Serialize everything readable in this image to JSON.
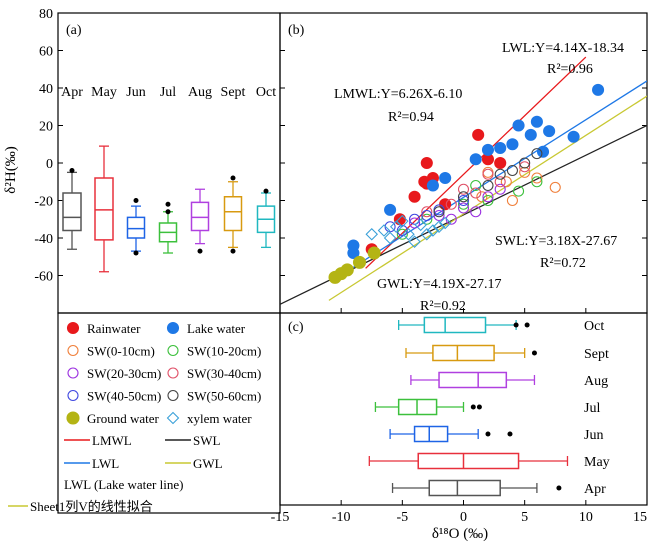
{
  "colors": {
    "rain": "#e8191c",
    "lake": "#1e78e6",
    "sw010": "#f0803c",
    "sw1020": "#3cc03c",
    "sw2030": "#9b30e0",
    "sw3040": "#e05068",
    "sw4050": "#4048e0",
    "sw5060": "#444444",
    "ground": "#b4b414",
    "xylem": "#3aa0d8",
    "lmwl": "#e8191c",
    "swl": "#222222",
    "lwl": "#1e78e6",
    "gwl": "#c8c832",
    "fit": "#c8c832",
    "box_apr": "#555555",
    "box_may": "#e8303c",
    "box_jun": "#1e64e6",
    "box_jul": "#3cc03c",
    "box_aug": "#b040e0",
    "box_sept": "#d89a10",
    "box_oct": "#20b8c0"
  },
  "axes": {
    "y_title": "δ²H(‰)",
    "x_title": "δ¹⁸O (‰)",
    "y_ticks": [
      "80",
      "60",
      "40",
      "20",
      "0",
      "-20",
      "-40",
      "-60"
    ],
    "x_ticks": [
      "-15",
      "-10",
      "-5",
      "0",
      "5",
      "10",
      "15"
    ]
  },
  "panels": {
    "a": "(a)",
    "b": "(b)",
    "c": "(c)"
  },
  "equations": {
    "lwl": "LWL:Y=4.14X-18.34",
    "lwl_r2": "R²=0.96",
    "lmwl": "LMWL:Y=6.26X-6.10",
    "lmwl_r2": "R²=0.94",
    "swl": "SWL:Y=3.18X-27.67",
    "swl_r2": "R²=0.72",
    "gwl": "GWL:Y=4.19X-27.17",
    "gwl_r2": "R²=0.92"
  },
  "legend": {
    "rain": "Rainwater",
    "lake": "Lake water",
    "sw010": "SW(0-10cm)",
    "sw1020": "SW(10-20cm)",
    "sw2030": "SW(20-30cm)",
    "sw3040": "SW(30-40cm)",
    "sw4050": "SW(40-50cm)",
    "sw5060": "SW(50-60cm)",
    "ground": "Ground water",
    "xylem": "xylem water",
    "lmwl": "LMWL",
    "swl": "SWL",
    "lwl": "LWL",
    "gwl": "GWL",
    "lwl_note": "LWL (Lake water line)",
    "fit": "Sheet1列V的线性拟合"
  },
  "chart_data": [
    {
      "panel": "(a)",
      "type": "box",
      "ylabel": "δ²H(‰)",
      "ylim": [
        -80,
        80
      ],
      "categories": [
        "Apr",
        "May",
        "Jun",
        "Jul",
        "Aug",
        "Sept",
        "Oct"
      ],
      "boxes": [
        {
          "name": "Apr",
          "whisker_low": -46,
          "q1": -36,
          "median": -29,
          "q3": -16,
          "whisker_high": -5,
          "outliers": [
            -4
          ]
        },
        {
          "name": "May",
          "whisker_low": -58,
          "q1": -41,
          "median": -25,
          "q3": -8,
          "whisker_high": 9,
          "outliers": []
        },
        {
          "name": "Jun",
          "whisker_low": -47,
          "q1": -40,
          "median": -35,
          "q3": -29,
          "whisker_high": -23,
          "outliers": [
            -20,
            -48
          ]
        },
        {
          "name": "Jul",
          "whisker_low": -48,
          "q1": -42,
          "median": -37,
          "q3": -32,
          "whisker_high": -26,
          "outliers": [
            -22,
            -26
          ]
        },
        {
          "name": "Aug",
          "whisker_low": -43,
          "q1": -36,
          "median": -29,
          "q3": -21,
          "whisker_high": -14,
          "outliers": [
            -47
          ]
        },
        {
          "name": "Sept",
          "whisker_low": -45,
          "q1": -36,
          "median": -26,
          "q3": -18,
          "whisker_high": -10,
          "outliers": [
            -8,
            -47
          ]
        },
        {
          "name": "Oct",
          "whisker_low": -45,
          "q1": -37,
          "median": -30,
          "q3": -23,
          "whisker_high": -16,
          "outliers": [
            -15
          ]
        }
      ]
    },
    {
      "panel": "(b)",
      "type": "scatter",
      "xlabel": "",
      "ylabel": "",
      "xlim": [
        -15,
        15
      ],
      "ylim": [
        -80,
        80
      ],
      "series": [
        {
          "name": "Rainwater",
          "points": [
            [
              -7.5,
              -46
            ],
            [
              -5.2,
              -30
            ],
            [
              -4.0,
              -18
            ],
            [
              -3.2,
              -10
            ],
            [
              -3.0,
              -11
            ],
            [
              -2.5,
              -8
            ],
            [
              -3.0,
              0
            ],
            [
              1.2,
              15
            ],
            [
              2.0,
              2
            ],
            [
              3.0,
              0
            ],
            [
              -1.5,
              -22
            ]
          ]
        },
        {
          "name": "Lake water",
          "points": [
            [
              -9.0,
              -44
            ],
            [
              -9.0,
              -48
            ],
            [
              -6.0,
              -25
            ],
            [
              -2.5,
              -12
            ],
            [
              -1.5,
              -8
            ],
            [
              1.0,
              2
            ],
            [
              2.0,
              7
            ],
            [
              3.0,
              8
            ],
            [
              4.0,
              10
            ],
            [
              4.5,
              20
            ],
            [
              5.5,
              15
            ],
            [
              6.0,
              22
            ],
            [
              7.0,
              17
            ],
            [
              6.5,
              6
            ],
            [
              9.0,
              14
            ],
            [
              11.0,
              39
            ]
          ]
        },
        {
          "name": "SW(0-10cm)",
          "points": [
            [
              2,
              -5
            ],
            [
              3.5,
              -10
            ],
            [
              5,
              -5
            ],
            [
              7.5,
              -13
            ],
            [
              4,
              -20
            ],
            [
              1.5,
              -18
            ],
            [
              6,
              -8
            ]
          ]
        },
        {
          "name": "SW(10-20cm)",
          "points": [
            [
              -3,
              -30
            ],
            [
              0,
              -22
            ],
            [
              2,
              -20
            ],
            [
              4.5,
              -15
            ],
            [
              6,
              -10
            ],
            [
              -5,
              -38
            ],
            [
              1,
              -12
            ]
          ]
        },
        {
          "name": "SW(20-30cm)",
          "points": [
            [
              -4,
              -32
            ],
            [
              -2,
              -28
            ],
            [
              0,
              -24
            ],
            [
              2,
              -18
            ],
            [
              3,
              -14
            ],
            [
              -1,
              -30
            ],
            [
              1,
              -26
            ]
          ]
        },
        {
          "name": "SW(30-40cm)",
          "points": [
            [
              -3,
              -26
            ],
            [
              -1,
              -22
            ],
            [
              1,
              -16
            ],
            [
              3,
              -10
            ],
            [
              5,
              -2
            ],
            [
              2,
              -6
            ],
            [
              0,
              -14
            ]
          ]
        },
        {
          "name": "SW(40-50cm)",
          "points": [
            [
              -6,
              -34
            ],
            [
              -4,
              -30
            ],
            [
              -2,
              -25
            ],
            [
              0,
              -20
            ],
            [
              -5,
              -36
            ],
            [
              -3,
              -28
            ]
          ]
        },
        {
          "name": "SW(50-60cm)",
          "points": [
            [
              -2,
              -26
            ],
            [
              0,
              -18
            ],
            [
              2,
              -12
            ],
            [
              4,
              -4
            ],
            [
              5,
              0
            ],
            [
              6,
              5
            ],
            [
              3,
              -6
            ]
          ]
        },
        {
          "name": "Ground water",
          "points": [
            [
              -10.5,
              -61
            ],
            [
              -10.0,
              -59
            ],
            [
              -9.5,
              -57
            ],
            [
              -8.5,
              -53
            ],
            [
              -7.3,
              -48
            ]
          ]
        },
        {
          "name": "xylem water",
          "points": [
            [
              -7.5,
              -38
            ],
            [
              -6.5,
              -36
            ],
            [
              -5.5,
              -34
            ],
            [
              -4.5,
              -38
            ],
            [
              -3.5,
              -33
            ],
            [
              -2.5,
              -36
            ],
            [
              -1.5,
              -32
            ],
            [
              -6,
              -40
            ],
            [
              -4,
              -42
            ],
            [
              -2,
              -34
            ],
            [
              -5,
              -31
            ],
            [
              -3,
              -38
            ]
          ]
        }
      ],
      "lines": [
        {
          "name": "LMWL",
          "slope": 6.26,
          "intercept": -6.1
        },
        {
          "name": "SWL",
          "slope": 3.18,
          "intercept": -27.67
        },
        {
          "name": "LWL",
          "slope": 4.14,
          "intercept": -18.34
        },
        {
          "name": "GWL",
          "slope": 4.19,
          "intercept": -27.17
        }
      ]
    },
    {
      "panel": "(c)",
      "type": "box",
      "orientation": "horizontal",
      "xlabel": "δ¹⁸O (‰)",
      "xlim": [
        -15,
        15
      ],
      "categories": [
        "Oct",
        "Sept",
        "Aug",
        "Jul",
        "Jun",
        "May",
        "Apr"
      ],
      "boxes": [
        {
          "name": "Oct",
          "whisker_low": -5.3,
          "q1": -3.2,
          "median": -1.5,
          "q3": 1.8,
          "whisker_high": 4.3,
          "outliers": [
            4.3,
            5.2
          ]
        },
        {
          "name": "Sept",
          "whisker_low": -4.7,
          "q1": -2.5,
          "median": -0.5,
          "q3": 2.5,
          "whisker_high": 5.0,
          "outliers": [
            5.8
          ]
        },
        {
          "name": "Aug",
          "whisker_low": -4.3,
          "q1": -2.0,
          "median": 1.2,
          "q3": 3.5,
          "whisker_high": 5.8,
          "outliers": []
        },
        {
          "name": "Jul",
          "whisker_low": -7.2,
          "q1": -5.3,
          "median": -3.8,
          "q3": -2.2,
          "whisker_high": 0.0,
          "outliers": [
            0.8,
            1.3
          ]
        },
        {
          "name": "Jun",
          "whisker_low": -6.0,
          "q1": -4.0,
          "median": -2.8,
          "q3": -1.3,
          "whisker_high": 1.2,
          "outliers": [
            2.0,
            3.8
          ]
        },
        {
          "name": "May",
          "whisker_low": -7.7,
          "q1": -3.7,
          "median": 0.0,
          "q3": 4.5,
          "whisker_high": 8.5,
          "outliers": []
        },
        {
          "name": "Apr",
          "whisker_low": -5.8,
          "q1": -2.8,
          "median": -0.5,
          "q3": 3.0,
          "whisker_high": 6.0,
          "outliers": [
            7.8
          ]
        }
      ]
    }
  ]
}
